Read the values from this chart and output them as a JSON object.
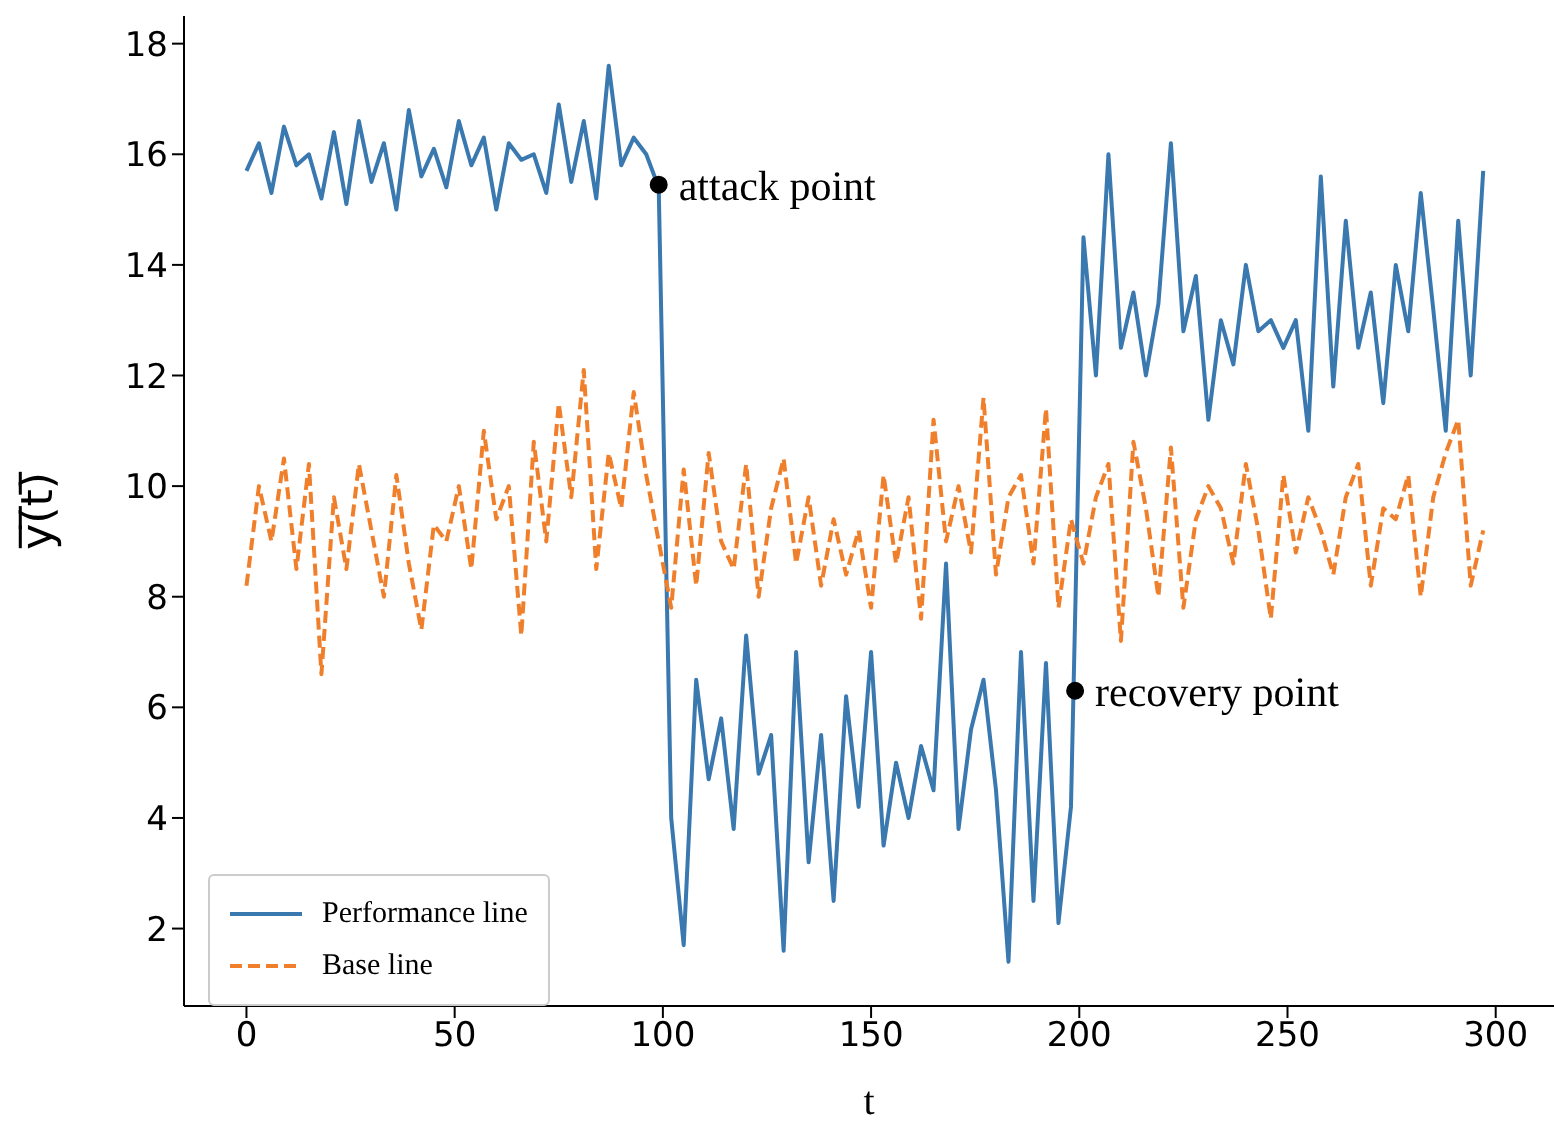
{
  "chart_data": {
    "type": "line",
    "xlabel": "t",
    "ylabel": "y̅(̅t̅)̅",
    "x": [
      0,
      3,
      6,
      9,
      12,
      15,
      18,
      21,
      24,
      27,
      30,
      33,
      36,
      39,
      42,
      45,
      48,
      51,
      54,
      57,
      60,
      63,
      66,
      69,
      72,
      75,
      78,
      81,
      84,
      87,
      90,
      93,
      96,
      99,
      102,
      105,
      108,
      111,
      114,
      117,
      120,
      123,
      126,
      129,
      132,
      135,
      138,
      141,
      144,
      147,
      150,
      153,
      156,
      159,
      162,
      165,
      168,
      171,
      174,
      177,
      180,
      183,
      186,
      189,
      192,
      195,
      198,
      201,
      204,
      207,
      210,
      213,
      216,
      219,
      222,
      225,
      228,
      231,
      234,
      237,
      240,
      243,
      246,
      249,
      252,
      255,
      258,
      261,
      264,
      267,
      270,
      273,
      276,
      279,
      282,
      285,
      288,
      291,
      294,
      297
    ],
    "series": [
      {
        "name": "Performance line",
        "color": "#3a78b0",
        "line_style": "solid",
        "values": [
          15.7,
          16.2,
          15.3,
          16.5,
          15.8,
          16.0,
          15.2,
          16.4,
          15.1,
          16.6,
          15.5,
          16.2,
          15.0,
          16.8,
          15.6,
          16.1,
          15.4,
          16.6,
          15.8,
          16.3,
          15.0,
          16.2,
          15.9,
          16.0,
          15.3,
          16.9,
          15.5,
          16.6,
          15.2,
          17.6,
          15.8,
          16.3,
          16.0,
          15.4,
          4.0,
          1.7,
          6.5,
          4.7,
          5.8,
          3.8,
          7.3,
          4.8,
          5.5,
          1.6,
          7.0,
          3.2,
          5.5,
          2.5,
          6.2,
          4.2,
          7.0,
          3.5,
          5.0,
          4.0,
          5.3,
          4.5,
          8.6,
          3.8,
          5.6,
          6.5,
          4.5,
          1.4,
          7.0,
          2.5,
          6.8,
          2.1,
          4.2,
          14.5,
          12.0,
          16.0,
          12.5,
          13.5,
          12.0,
          13.3,
          16.2,
          12.8,
          13.8,
          11.2,
          13.0,
          12.2,
          14.0,
          12.8,
          13.0,
          12.5,
          13.0,
          11.0,
          15.6,
          11.8,
          14.8,
          12.5,
          13.5,
          11.5,
          14.0,
          12.8,
          15.3,
          13.2,
          11.0,
          14.8,
          12.0,
          15.7
        ]
      },
      {
        "name": "Base line",
        "color": "#f07f2c",
        "line_style": "dashed",
        "values": [
          8.2,
          10.0,
          9.0,
          10.5,
          8.5,
          10.4,
          6.6,
          9.8,
          8.5,
          10.4,
          9.2,
          8.0,
          10.2,
          8.6,
          7.4,
          9.3,
          9.0,
          10.0,
          8.5,
          11.0,
          9.4,
          10.0,
          7.3,
          10.8,
          9.0,
          11.5,
          9.8,
          12.1,
          8.5,
          10.6,
          9.6,
          11.7,
          10.2,
          9.0,
          7.8,
          10.3,
          8.2,
          10.6,
          9.0,
          8.5,
          10.4,
          8.0,
          9.6,
          10.5,
          8.6,
          9.8,
          8.2,
          9.4,
          8.4,
          9.2,
          7.8,
          10.2,
          8.6,
          9.8,
          7.6,
          11.2,
          9.0,
          10.0,
          8.8,
          11.6,
          8.4,
          9.8,
          10.2,
          8.6,
          11.4,
          7.8,
          9.4,
          8.6,
          9.8,
          10.4,
          7.2,
          10.8,
          9.6,
          8.0,
          10.7,
          7.8,
          9.4,
          10.0,
          9.6,
          8.6,
          10.4,
          9.2,
          7.6,
          10.2,
          8.8,
          9.8,
          9.2,
          8.4,
          9.8,
          10.4,
          8.2,
          9.6,
          9.4,
          10.2,
          8.0,
          9.8,
          10.6,
          11.2,
          8.2,
          9.2
        ]
      }
    ],
    "annotations": [
      {
        "text": "attack point",
        "x": 99,
        "y": 15.45
      },
      {
        "text": "recovery point",
        "x": 199,
        "y": 6.3
      }
    ],
    "xlim": [
      -15,
      314
    ],
    "xticks": [
      0,
      50,
      100,
      150,
      200,
      250,
      300
    ],
    "ylim": [
      0.6,
      18.5
    ],
    "yticks": [
      2,
      4,
      6,
      8,
      10,
      12,
      14,
      16,
      18
    ],
    "grid": false,
    "legend": "bottom left",
    "marker": "none"
  }
}
